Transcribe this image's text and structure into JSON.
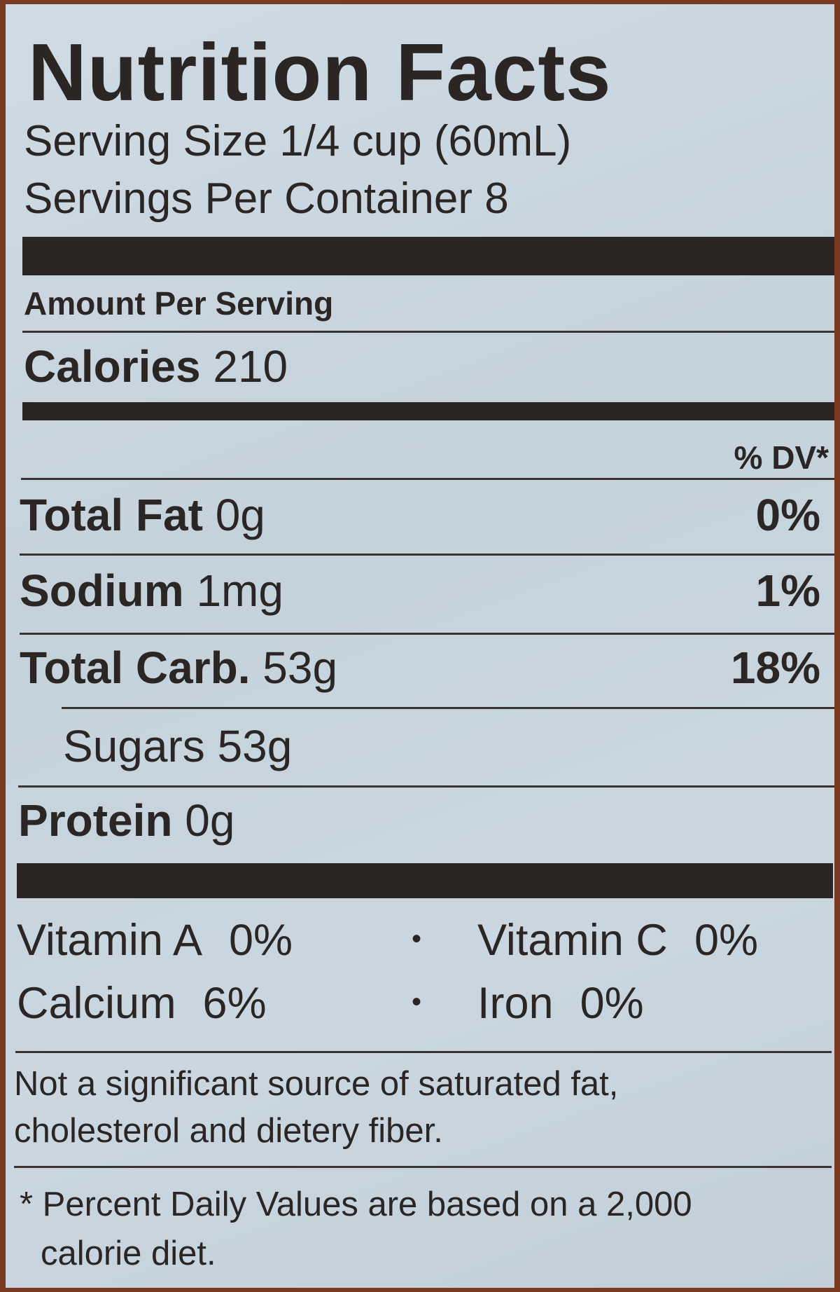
{
  "title": "Nutrition Facts",
  "serving_size": "Serving Size 1/4 cup (60mL)",
  "servings_per_container": "Servings Per Container 8",
  "amount_per_serving": "Amount Per Serving",
  "calories": {
    "label": "Calories",
    "value": "210"
  },
  "dv_header": "% DV*",
  "nutrients": [
    {
      "name": "Total Fat",
      "amount": "0g",
      "dv": "0%"
    },
    {
      "name": "Sodium",
      "amount": "1mg",
      "dv": "1%"
    },
    {
      "name": "Total Carb.",
      "amount": "53g",
      "dv": "18%"
    }
  ],
  "sugars": {
    "name": "Sugars",
    "amount": "53g"
  },
  "protein": {
    "name": "Protein",
    "amount": "0g"
  },
  "vitamins": [
    {
      "name": "Vitamin A",
      "dv": "0%"
    },
    {
      "name": "Vitamin C",
      "dv": "0%"
    },
    {
      "name": "Calcium",
      "dv": "6%"
    },
    {
      "name": "Iron",
      "dv": "0%"
    }
  ],
  "footnotes": [
    "Not a significant source of saturated fat, cholesterol and dietery fiber.",
    "* Percent Daily Values are based on a 2,000 calorie diet."
  ]
}
